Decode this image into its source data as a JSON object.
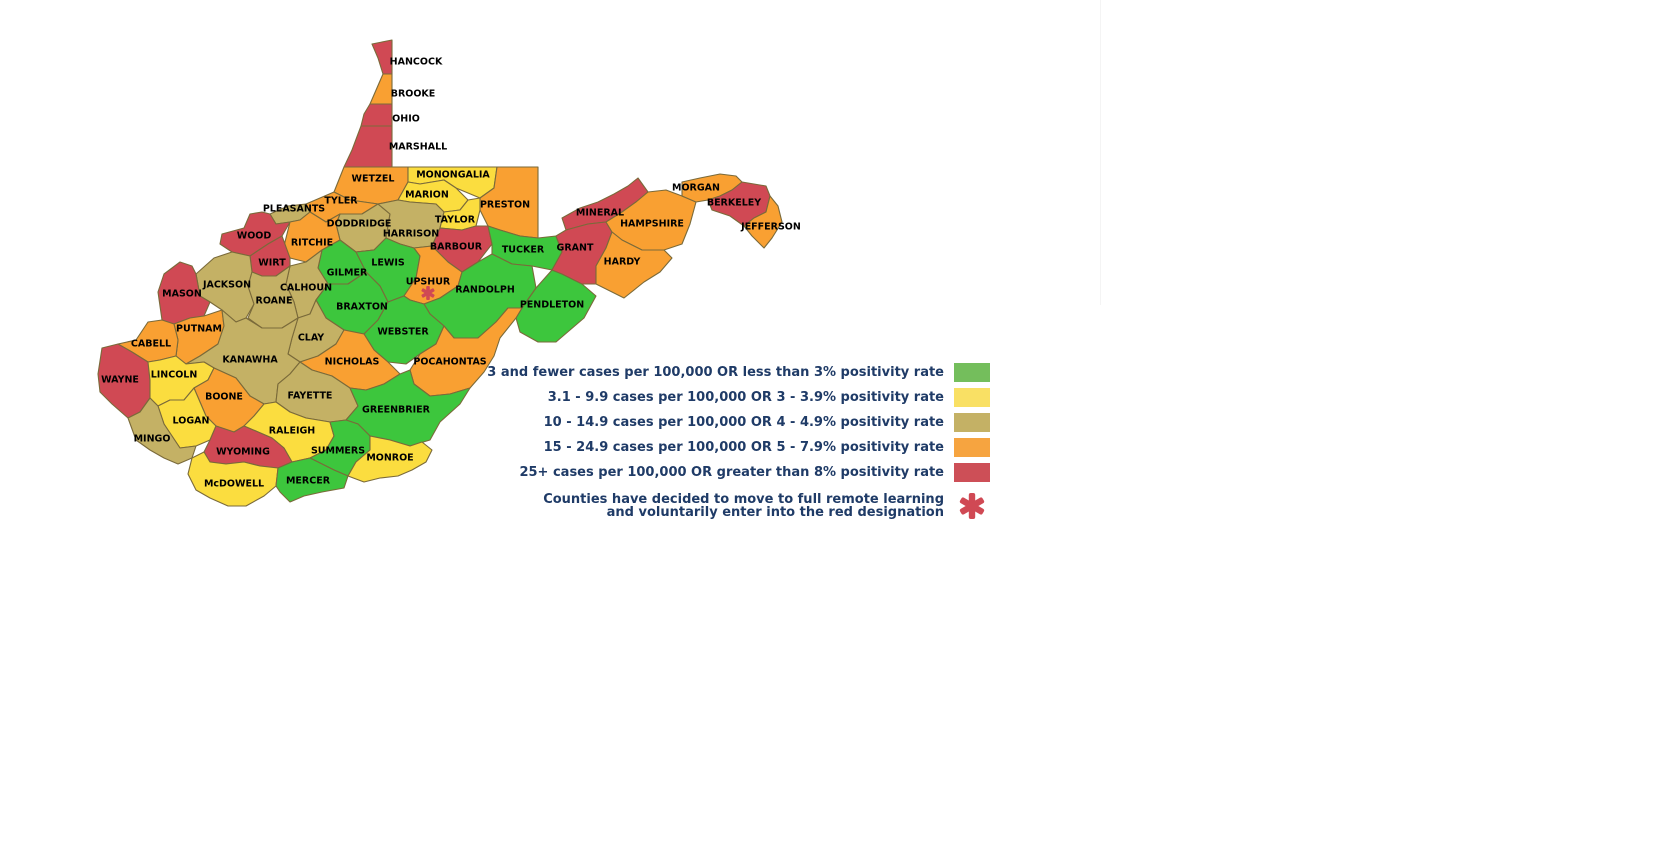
{
  "colors": {
    "green": "#3dc63d",
    "yellow": "#fbdd3f",
    "gold": "#c4b165",
    "orange": "#f9a032",
    "red": "#d04954",
    "legend_green": "#74be5c",
    "legend_yellow": "#f9e064",
    "legend_gold": "#c4b165",
    "legend_orange": "#f6a440",
    "legend_red": "#cd4f57",
    "legend_text": "#1f3b67",
    "asterisk": "#d04954"
  },
  "counties": [
    {
      "name": "HANCOCK",
      "level": "red"
    },
    {
      "name": "BROOKE",
      "level": "orange"
    },
    {
      "name": "OHIO",
      "level": "red"
    },
    {
      "name": "MARSHALL",
      "level": "red"
    },
    {
      "name": "WETZEL",
      "level": "orange"
    },
    {
      "name": "MONONGALIA",
      "level": "yellow"
    },
    {
      "name": "MARION",
      "level": "yellow"
    },
    {
      "name": "PRESTON",
      "level": "orange"
    },
    {
      "name": "TYLER",
      "level": "orange"
    },
    {
      "name": "PLEASANTS",
      "level": "gold"
    },
    {
      "name": "DODDRIDGE",
      "level": "gold"
    },
    {
      "name": "HARRISON",
      "level": "gold"
    },
    {
      "name": "TAYLOR",
      "level": "yellow"
    },
    {
      "name": "WOOD",
      "level": "red"
    },
    {
      "name": "RITCHIE",
      "level": "orange"
    },
    {
      "name": "BARBOUR",
      "level": "red"
    },
    {
      "name": "TUCKER",
      "level": "green"
    },
    {
      "name": "WIRT",
      "level": "red"
    },
    {
      "name": "GILMER",
      "level": "green"
    },
    {
      "name": "LEWIS",
      "level": "green"
    },
    {
      "name": "UPSHUR",
      "level": "orange"
    },
    {
      "name": "RANDOLPH",
      "level": "green"
    },
    {
      "name": "JACKSON",
      "level": "gold"
    },
    {
      "name": "CALHOUN",
      "level": "gold"
    },
    {
      "name": "ROANE",
      "level": "gold"
    },
    {
      "name": "MASON",
      "level": "red"
    },
    {
      "name": "BRAXTON",
      "level": "green"
    },
    {
      "name": "PENDLETON",
      "level": "green"
    },
    {
      "name": "PUTNAM",
      "level": "orange"
    },
    {
      "name": "WEBSTER",
      "level": "green"
    },
    {
      "name": "CLAY",
      "level": "gold"
    },
    {
      "name": "CABELL",
      "level": "orange"
    },
    {
      "name": "KANAWHA",
      "level": "gold"
    },
    {
      "name": "NICHOLAS",
      "level": "orange"
    },
    {
      "name": "POCAHONTAS",
      "level": "orange"
    },
    {
      "name": "WAYNE",
      "level": "red"
    },
    {
      "name": "LINCOLN",
      "level": "yellow"
    },
    {
      "name": "BOONE",
      "level": "orange"
    },
    {
      "name": "FAYETTE",
      "level": "gold"
    },
    {
      "name": "GREENBRIER",
      "level": "green"
    },
    {
      "name": "LOGAN",
      "level": "yellow"
    },
    {
      "name": "MINGO",
      "level": "gold"
    },
    {
      "name": "RALEIGH",
      "level": "yellow"
    },
    {
      "name": "WYOMING",
      "level": "red"
    },
    {
      "name": "SUMMERS",
      "level": "green"
    },
    {
      "name": "MONROE",
      "level": "yellow"
    },
    {
      "name": "McDOWELL",
      "level": "yellow"
    },
    {
      "name": "MERCER",
      "level": "green"
    },
    {
      "name": "MINERAL",
      "level": "red"
    },
    {
      "name": "GRANT",
      "level": "red"
    },
    {
      "name": "HAMPSHIRE",
      "level": "orange"
    },
    {
      "name": "HARDY",
      "level": "orange"
    },
    {
      "name": "MORGAN",
      "level": "orange"
    },
    {
      "name": "BERKELEY",
      "level": "red"
    },
    {
      "name": "JEFFERSON",
      "level": "orange"
    }
  ],
  "remote_marker": {
    "county": "UPSHUR",
    "symbol": "*"
  },
  "legend": {
    "items": [
      {
        "label": "3 and fewer cases per 100,000 OR less than 3% positivity rate",
        "level": "green"
      },
      {
        "label": "3.1 - 9.9 cases per 100,000 OR 3 - 3.9% positivity rate",
        "level": "yellow"
      },
      {
        "label": "10 - 14.9 cases per 100,000 OR 4 - 4.9% positivity rate",
        "level": "gold"
      },
      {
        "label": "15 - 24.9 cases per 100,000 OR 5 - 7.9% positivity rate",
        "level": "orange"
      },
      {
        "label": "25+ cases per 100,000 OR greater than 8% positivity rate",
        "level": "red"
      }
    ],
    "remote_line1": "Counties have decided to move to full remote learning",
    "remote_line2": "and voluntarily enter into the red designation"
  }
}
